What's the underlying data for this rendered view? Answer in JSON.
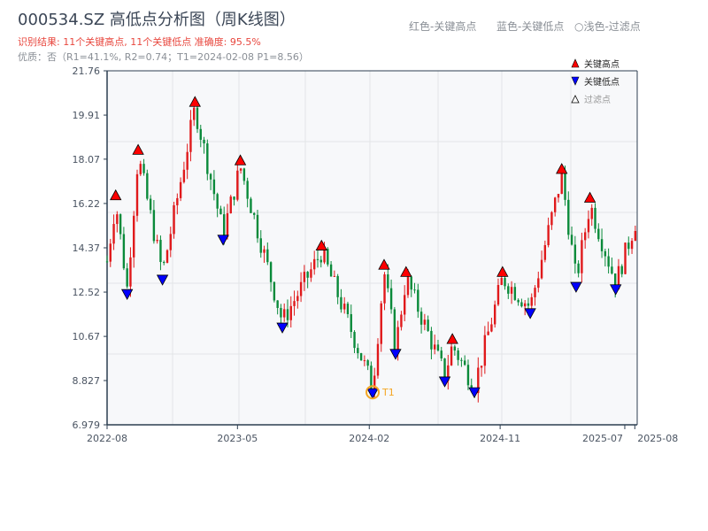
{
  "header": {
    "title": "000534.SZ 高低点分析图（周K线图）",
    "result": "识别结果: 11个关键高点, 11个关键低点  准确度: 95.5%",
    "quality": "优质：否（R1=41.1%, R2=0.74；T1=2024-02-08 P1=8.56）"
  },
  "color_key": [
    "红色-关键高点",
    "蓝色-关键低点",
    "○浅色-过滤点"
  ],
  "legend": {
    "high": "关键高点",
    "low": "关键低点",
    "filtered": "过滤点"
  },
  "colors": {
    "up": "#e0191b",
    "down": "#0a8a3a",
    "high_marker": "#ff0000",
    "low_marker": "#0000ff",
    "t1": "#f5a623",
    "plot_bg": "#f7f8fa",
    "axis": "#2c3e50"
  },
  "chart_data": {
    "type": "candlestick",
    "interval": "weekly",
    "ylim": [
      6.979,
      21.76
    ],
    "yticks": [
      "21.76",
      "19.91",
      "18.07",
      "16.22",
      "14.37",
      "12.52",
      "10.67",
      "8.827",
      "6.979"
    ],
    "xlim": [
      "2022-08-01",
      "2025-08-15"
    ],
    "xticks": [
      {
        "date": "2022-08-01",
        "label": "2022-08"
      },
      {
        "date": "2023-05-01",
        "label": "2023-05"
      },
      {
        "date": "2024-02-01",
        "label": "2024-02"
      },
      {
        "date": "2024-11-01",
        "label": "2024-11"
      },
      {
        "date": "2025-07-20",
        "label": "2025-07"
      },
      {
        "date": "2025-08-10",
        "label": "2025-08"
      }
    ],
    "start": {
      "date": "2022-08-01",
      "price": 13.8
    },
    "end": {
      "date": "2025-08-12",
      "price": 15.5
    },
    "pivots": [
      {
        "date": "2022-08-19",
        "price": 16.3,
        "type": "high"
      },
      {
        "date": "2022-09-12",
        "price": 12.7,
        "type": "low"
      },
      {
        "date": "2022-10-05",
        "price": 18.2,
        "type": "high"
      },
      {
        "date": "2022-11-25",
        "price": 13.3,
        "type": "low"
      },
      {
        "date": "2023-02-01",
        "price": 20.2,
        "type": "high"
      },
      {
        "date": "2023-04-01",
        "price": 14.97,
        "type": "low"
      },
      {
        "date": "2023-05-07",
        "price": 17.76,
        "type": "high"
      },
      {
        "date": "2023-08-03",
        "price": 11.3,
        "type": "low"
      },
      {
        "date": "2023-10-24",
        "price": 14.2,
        "type": "high"
      },
      {
        "date": "2024-02-08",
        "price": 8.56,
        "type": "low",
        "label": "T1"
      },
      {
        "date": "2024-03-03",
        "price": 13.4,
        "type": "high"
      },
      {
        "date": "2024-03-27",
        "price": 10.2,
        "type": "low"
      },
      {
        "date": "2024-04-18",
        "price": 13.1,
        "type": "high"
      },
      {
        "date": "2024-07-08",
        "price": 9.05,
        "type": "low"
      },
      {
        "date": "2024-07-24",
        "price": 10.3,
        "type": "high"
      },
      {
        "date": "2024-09-08",
        "price": 8.6,
        "type": "low"
      },
      {
        "date": "2024-11-06",
        "price": 13.1,
        "type": "high"
      },
      {
        "date": "2025-01-03",
        "price": 11.9,
        "type": "low"
      },
      {
        "date": "2025-03-10",
        "price": 17.4,
        "type": "high"
      },
      {
        "date": "2025-04-09",
        "price": 13.0,
        "type": "low"
      },
      {
        "date": "2025-05-08",
        "price": 16.2,
        "type": "high"
      },
      {
        "date": "2025-07-01",
        "price": 12.9,
        "type": "low"
      }
    ]
  }
}
